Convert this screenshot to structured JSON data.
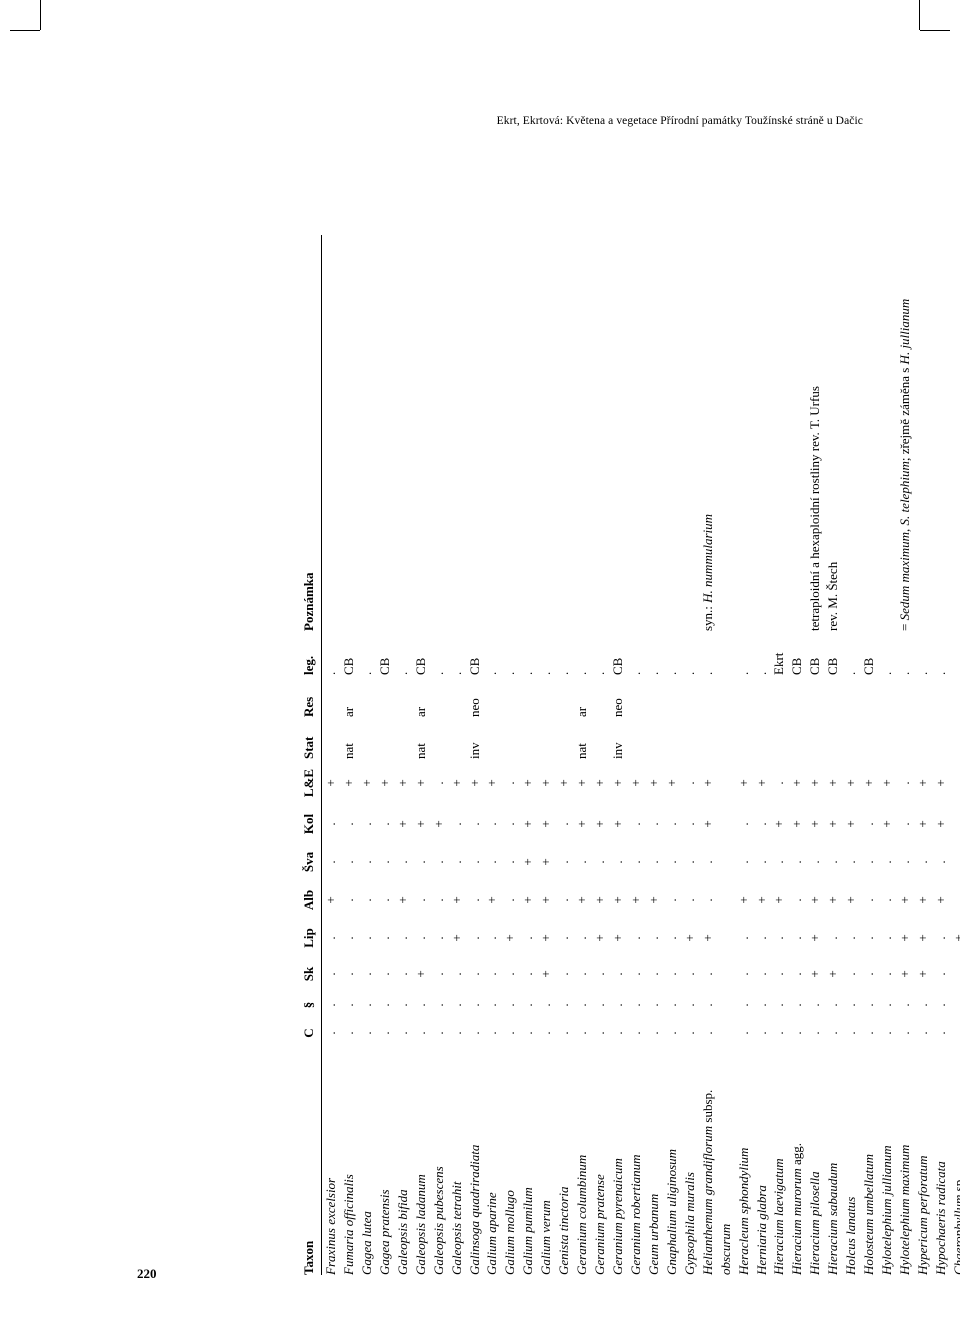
{
  "page_number": "220",
  "running_head": "Ekrt, Ekrtová: Květena a vegetace Přírodní památky Toužínské stráně u Dačic",
  "columns": {
    "taxon": "Taxon",
    "c": "C",
    "sec": "§",
    "sk": "Sk",
    "lip": "Lip",
    "alb": "Alb",
    "sva": "Šva",
    "kol": "Kol",
    "le": "L&E",
    "stat": "Stat",
    "res": "Res",
    "leg": "leg.",
    "pozn": "Poznámka"
  },
  "taxa": [
    {
      "taxon": "Fraxinus excelsior",
      "c": ".",
      "sec": ".",
      "sk": ".",
      "lip": ".",
      "alb": "+",
      "sva": ".",
      "kol": ".",
      "le": "+",
      "stat": "",
      "res": "",
      "leg": ".",
      "pozn": ""
    },
    {
      "taxon": "Fumaria officinalis",
      "c": ".",
      "sec": ".",
      "sk": ".",
      "lip": ".",
      "alb": ".",
      "sva": ".",
      "kol": ".",
      "le": "+",
      "stat": "nat",
      "res": "ar",
      "leg": "CB",
      "pozn": ""
    },
    {
      "taxon": "Gagea lutea",
      "c": ".",
      "sec": ".",
      "sk": ".",
      "lip": ".",
      "alb": ".",
      "sva": ".",
      "kol": ".",
      "le": "+",
      "stat": "",
      "res": "",
      "leg": ".",
      "pozn": ""
    },
    {
      "taxon": "Gagea pratensis",
      "c": ".",
      "sec": ".",
      "sk": ".",
      "lip": ".",
      "alb": ".",
      "sva": ".",
      "kol": ".",
      "le": "+",
      "stat": "",
      "res": "",
      "leg": "CB",
      "pozn": ""
    },
    {
      "taxon": "Galeopsis bifida",
      "c": ".",
      "sec": ".",
      "sk": ".",
      "lip": ".",
      "alb": "+",
      "sva": ".",
      "kol": "+",
      "le": "+",
      "stat": "",
      "res": "",
      "leg": ".",
      "pozn": ""
    },
    {
      "taxon": "Galeopsis ladanum",
      "c": ".",
      "sec": ".",
      "sk": "+",
      "lip": ".",
      "alb": ".",
      "sva": ".",
      "kol": "+",
      "le": "+",
      "stat": "nat",
      "res": "ar",
      "leg": "CB",
      "pozn": ""
    },
    {
      "taxon": "Galeopsis pubescens",
      "c": ".",
      "sec": ".",
      "sk": ".",
      "lip": ".",
      "alb": ".",
      "sva": ".",
      "kol": "+",
      "le": ".",
      "stat": "",
      "res": "",
      "leg": ".",
      "pozn": ""
    },
    {
      "taxon": "Galeopsis tetrahit",
      "c": ".",
      "sec": ".",
      "sk": ".",
      "lip": "+",
      "alb": "+",
      "sva": ".",
      "kol": ".",
      "le": "+",
      "stat": "",
      "res": "",
      "leg": ".",
      "pozn": ""
    },
    {
      "taxon": "Galinsoga quadriradiata",
      "c": ".",
      "sec": ".",
      "sk": ".",
      "lip": ".",
      "alb": ".",
      "sva": ".",
      "kol": ".",
      "le": "+",
      "stat": "inv",
      "res": "neo",
      "leg": "CB",
      "pozn": ""
    },
    {
      "taxon": "Galium aparine",
      "c": ".",
      "sec": ".",
      "sk": ".",
      "lip": ".",
      "alb": "+",
      "sva": ".",
      "kol": ".",
      "le": "+",
      "stat": "",
      "res": "",
      "leg": ".",
      "pozn": ""
    },
    {
      "taxon": "Galium mollugo",
      "c": ".",
      "sec": ".",
      "sk": ".",
      "lip": "+",
      "alb": ".",
      "sva": ".",
      "kol": ".",
      "le": ".",
      "stat": "",
      "res": "",
      "leg": ".",
      "pozn": ""
    },
    {
      "taxon": "Galium pumilum",
      "c": ".",
      "sec": ".",
      "sk": ".",
      "lip": ".",
      "alb": "+",
      "sva": "+",
      "kol": "+",
      "le": "+",
      "stat": "",
      "res": "",
      "leg": ".",
      "pozn": ""
    },
    {
      "taxon": "Galium verum",
      "c": ".",
      "sec": ".",
      "sk": "+",
      "lip": "+",
      "alb": "+",
      "sva": "+",
      "kol": "+",
      "le": "+",
      "stat": "",
      "res": "",
      "leg": ".",
      "pozn": ""
    },
    {
      "taxon": "Genista tinctoria",
      "c": ".",
      "sec": ".",
      "sk": ".",
      "lip": ".",
      "alb": ".",
      "sva": ".",
      "kol": ".",
      "le": "+",
      "stat": "",
      "res": "",
      "leg": ".",
      "pozn": ""
    },
    {
      "taxon": "Geranium columbinum",
      "c": ".",
      "sec": ".",
      "sk": ".",
      "lip": ".",
      "alb": "+",
      "sva": ".",
      "kol": "+",
      "le": "+",
      "stat": "nat",
      "res": "ar",
      "leg": ".",
      "pozn": ""
    },
    {
      "taxon": "Geranium pratense",
      "c": ".",
      "sec": ".",
      "sk": ".",
      "lip": "+",
      "alb": "+",
      "sva": ".",
      "kol": "+",
      "le": "+",
      "stat": "",
      "res": "",
      "leg": ".",
      "pozn": ""
    },
    {
      "taxon": "Geranium pyrenaicum",
      "c": ".",
      "sec": ".",
      "sk": ".",
      "lip": "+",
      "alb": "+",
      "sva": ".",
      "kol": "+",
      "le": "+",
      "stat": "inv",
      "res": "neo",
      "leg": "CB",
      "pozn": ""
    },
    {
      "taxon": "Geranium robertianum",
      "c": ".",
      "sec": ".",
      "sk": ".",
      "lip": ".",
      "alb": "+",
      "sva": ".",
      "kol": ".",
      "le": "+",
      "stat": "",
      "res": "",
      "leg": ".",
      "pozn": ""
    },
    {
      "taxon": "Geum urbanum",
      "c": ".",
      "sec": ".",
      "sk": ".",
      "lip": ".",
      "alb": "+",
      "sva": ".",
      "kol": ".",
      "le": "+",
      "stat": "",
      "res": "",
      "leg": ".",
      "pozn": ""
    },
    {
      "taxon": "Gnaphalium uliginosum",
      "c": ".",
      "sec": ".",
      "sk": ".",
      "lip": ".",
      "alb": ".",
      "sva": ".",
      "kol": ".",
      "le": "+",
      "stat": "",
      "res": "",
      "leg": ".",
      "pozn": ""
    },
    {
      "taxon": "Gypsophila muralis",
      "c": ".",
      "sec": ".",
      "sk": ".",
      "lip": "+",
      "alb": ".",
      "sva": ".",
      "kol": ".",
      "le": ".",
      "stat": "",
      "res": "",
      "leg": ".",
      "pozn": ""
    },
    {
      "taxon": "Helianthemum grandiflorum <span class=\"roman\">subsp.</span> obscurum",
      "c": ".",
      "sec": ".",
      "sk": ".",
      "lip": "+",
      "alb": ".",
      "sva": ".",
      "kol": "+",
      "le": "+",
      "stat": "",
      "res": "",
      "leg": ".",
      "pozn": "syn.: <i>H. nummularium</i>"
    },
    {
      "taxon": "Heracleum sphondylium",
      "c": ".",
      "sec": ".",
      "sk": ".",
      "lip": ".",
      "alb": "+",
      "sva": ".",
      "kol": ".",
      "le": "+",
      "stat": "",
      "res": "",
      "leg": ".",
      "pozn": ""
    },
    {
      "taxon": "Herniaria glabra",
      "c": ".",
      "sec": ".",
      "sk": ".",
      "lip": ".",
      "alb": "+",
      "sva": ".",
      "kol": ".",
      "le": "+",
      "stat": "",
      "res": "",
      "leg": ".",
      "pozn": ""
    },
    {
      "taxon": "Hieracium laevigatum",
      "c": ".",
      "sec": ".",
      "sk": ".",
      "lip": ".",
      "alb": "+",
      "sva": ".",
      "kol": "+",
      "le": ".",
      "stat": "",
      "res": "",
      "leg": "Ekrt",
      "pozn": ""
    },
    {
      "taxon": "Hieracium murorum <span class=\"roman\">agg.</span>",
      "c": ".",
      "sec": ".",
      "sk": ".",
      "lip": ".",
      "alb": ".",
      "sva": ".",
      "kol": "+",
      "le": "+",
      "stat": "",
      "res": "",
      "leg": "CB",
      "pozn": ""
    },
    {
      "taxon": "Hieracium pilosella",
      "c": ".",
      "sec": ".",
      "sk": "+",
      "lip": "+",
      "alb": "+",
      "sva": ".",
      "kol": "+",
      "le": "+",
      "stat": "",
      "res": "",
      "leg": "CB",
      "pozn": "tetraploidní a hexaploidní rostliny rev. T. Urfus"
    },
    {
      "taxon": "Hieracium sabaudum",
      "c": ".",
      "sec": ".",
      "sk": "+",
      "lip": ".",
      "alb": "+",
      "sva": ".",
      "kol": "+",
      "le": "+",
      "stat": "",
      "res": "",
      "leg": "CB",
      "pozn": "rev. M. Štech"
    },
    {
      "taxon": "Holcus lanatus",
      "c": ".",
      "sec": ".",
      "sk": ".",
      "lip": ".",
      "alb": "+",
      "sva": ".",
      "kol": "+",
      "le": "+",
      "stat": "",
      "res": "",
      "leg": ".",
      "pozn": ""
    },
    {
      "taxon": "Holosteum umbellatum",
      "c": ".",
      "sec": ".",
      "sk": ".",
      "lip": ".",
      "alb": ".",
      "sva": ".",
      "kol": ".",
      "le": "+",
      "stat": "",
      "res": "",
      "leg": "CB",
      "pozn": ""
    },
    {
      "taxon": "Hylotelephium jullianum",
      "c": ".",
      "sec": ".",
      "sk": ".",
      "lip": ".",
      "alb": ".",
      "sva": ".",
      "kol": "+",
      "le": "+",
      "stat": "",
      "res": "",
      "leg": ".",
      "pozn": ""
    },
    {
      "taxon": "Hylotelephium maximum",
      "c": ".",
      "sec": ".",
      "sk": "+",
      "lip": "+",
      "alb": "+",
      "sva": ".",
      "kol": ".",
      "le": ".",
      "stat": "",
      "res": "",
      "leg": ".",
      "pozn": "= <i>Sedum maximum</i>, <i>S. telephium</i>; zřejmě záměna s <i>H. jullianum</i>"
    },
    {
      "taxon": "Hypericum perforatum",
      "c": ".",
      "sec": ".",
      "sk": "+",
      "lip": "+",
      "alb": "+",
      "sva": ".",
      "kol": "+",
      "le": "+",
      "stat": "",
      "res": "",
      "leg": ".",
      "pozn": ""
    },
    {
      "taxon": "Hypochaeris radicata",
      "c": ".",
      "sec": ".",
      "sk": ".",
      "lip": ".",
      "alb": "+",
      "sva": ".",
      "kol": "+",
      "le": "+",
      "stat": "",
      "res": "",
      "leg": ".",
      "pozn": ""
    },
    {
      "taxon": "Chaerophyllum <span class=\"roman\">sp.</span>",
      "c": ".",
      "sec": ".",
      "sk": ".",
      "lip": "+",
      "alb": ".",
      "sva": ".",
      "kol": ".",
      "le": ".",
      "stat": "",
      "res": "",
      "leg": ".",
      "pozn": ""
    }
  ]
}
